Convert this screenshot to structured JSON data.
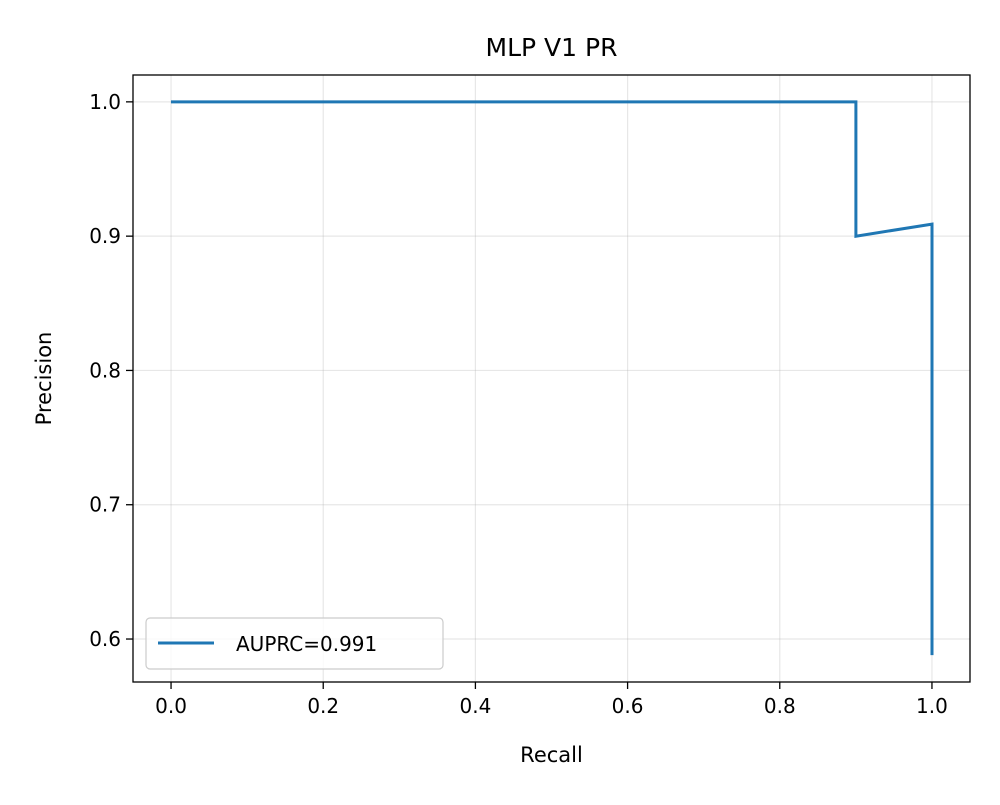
{
  "chart_data": {
    "type": "line",
    "title": "MLP V1 PR",
    "xlabel": "Recall",
    "ylabel": "Precision",
    "xlim": [
      -0.05,
      1.05
    ],
    "ylim": [
      0.568,
      1.02
    ],
    "xticks": [
      0.0,
      0.2,
      0.4,
      0.6,
      0.8,
      1.0
    ],
    "xtick_labels": [
      "0.0",
      "0.2",
      "0.4",
      "0.6",
      "0.8",
      "1.0"
    ],
    "yticks": [
      0.6,
      0.7,
      0.8,
      0.9,
      1.0
    ],
    "ytick_labels": [
      "0.6",
      "0.7",
      "0.8",
      "0.9",
      "1.0"
    ],
    "grid": true,
    "legend_position": "lower-left",
    "series": [
      {
        "name": "AUPRC=0.991",
        "color": "#1f77b4",
        "step": "post",
        "x": [
          0.0,
          0.9,
          0.9,
          1.0,
          1.0
        ],
        "y": [
          1.0,
          1.0,
          0.9,
          0.909,
          0.588
        ]
      }
    ]
  }
}
